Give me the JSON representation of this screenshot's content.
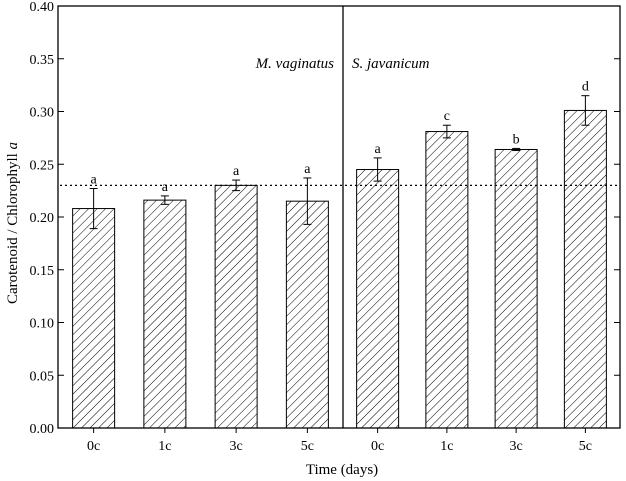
{
  "chart_data": {
    "type": "bar",
    "xlabel": "Time (days)",
    "ylabel": "Carotenoid / Chlorophyll",
    "ylabel_italic_suffix": "a",
    "ylim": [
      0,
      0.4
    ],
    "yticks": [
      "0.00",
      "0.05",
      "0.10",
      "0.15",
      "0.20",
      "0.25",
      "0.30",
      "0.35",
      "0.40"
    ],
    "grid": false,
    "reference_line": 0.23,
    "pattern": "diagonal-hatch",
    "colors": {
      "bar_fill": "#ffffff",
      "bar_hatch": "#000000",
      "axis": "#000000"
    },
    "panels": [
      {
        "label": "M. vaginatus",
        "categories": [
          "0c",
          "1c",
          "3c",
          "5c"
        ],
        "values": [
          0.208,
          0.216,
          0.23,
          0.215
        ],
        "errors": [
          0.019,
          0.004,
          0.005,
          0.022
        ],
        "letters": [
          "a",
          "a",
          "a",
          "a"
        ]
      },
      {
        "label": "S. javanicum",
        "categories": [
          "0c",
          "1c",
          "3c",
          "5c"
        ],
        "values": [
          0.245,
          0.281,
          0.264,
          0.301
        ],
        "errors": [
          0.011,
          0.006,
          0.001,
          0.014
        ],
        "letters": [
          "a",
          "c",
          "b",
          "d"
        ]
      }
    ]
  }
}
